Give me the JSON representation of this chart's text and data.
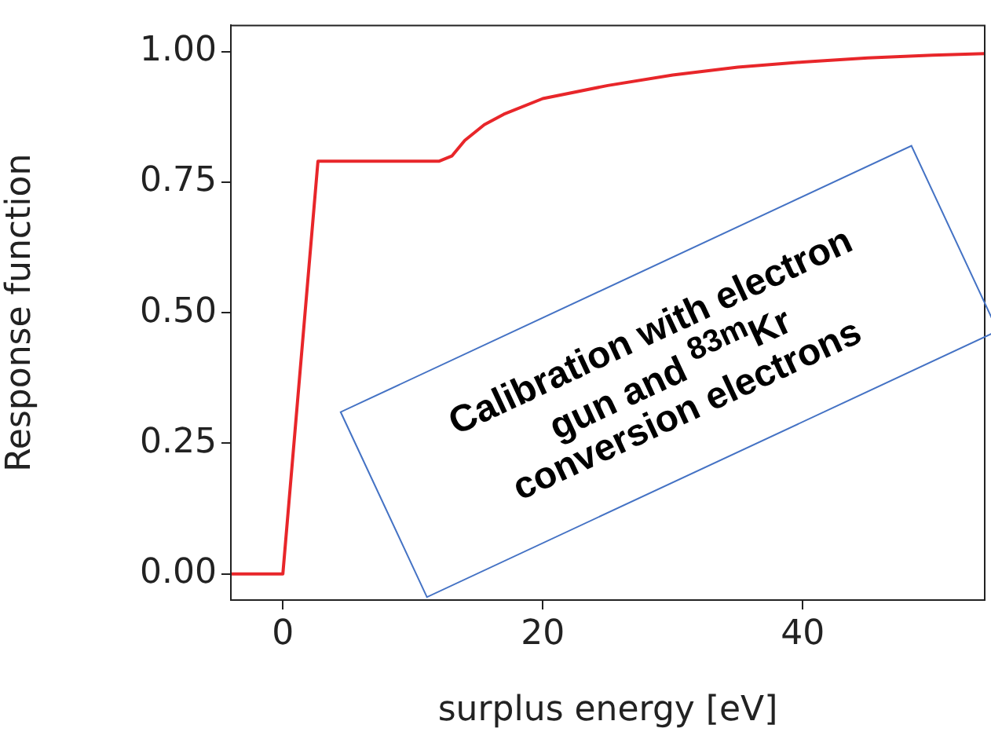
{
  "chart_data": {
    "type": "line",
    "xlabel": "surplus energy [eV]",
    "ylabel": "Response function",
    "x": [
      -4,
      0,
      2.7,
      12,
      13,
      14,
      15.5,
      17,
      20,
      25,
      30,
      35,
      40,
      45,
      50,
      54
    ],
    "series": [
      {
        "color": "#e8262a",
        "values": [
          0,
          0,
          0.79,
          0.79,
          0.8,
          0.83,
          0.86,
          0.88,
          0.91,
          0.935,
          0.955,
          0.97,
          0.98,
          0.988,
          0.993,
          0.996
        ]
      }
    ],
    "xlim": [
      -4,
      54
    ],
    "xticks": [
      0,
      20,
      40
    ],
    "ylim": [
      -0.05,
      1.05
    ],
    "yticks": [
      {
        "value": 0,
        "label": "0.00"
      },
      {
        "value": 0.25,
        "label": "0.25"
      },
      {
        "value": 0.5,
        "label": "0.50"
      },
      {
        "value": 0.75,
        "label": "0.75"
      },
      {
        "value": 1,
        "label": "1.00"
      }
    ],
    "grid": false,
    "legend": false,
    "marker": "none",
    "line_style": "solid",
    "annotations": [
      "Calibration with electron gun and $^{83m}$Kr conversion electrons"
    ]
  }
}
